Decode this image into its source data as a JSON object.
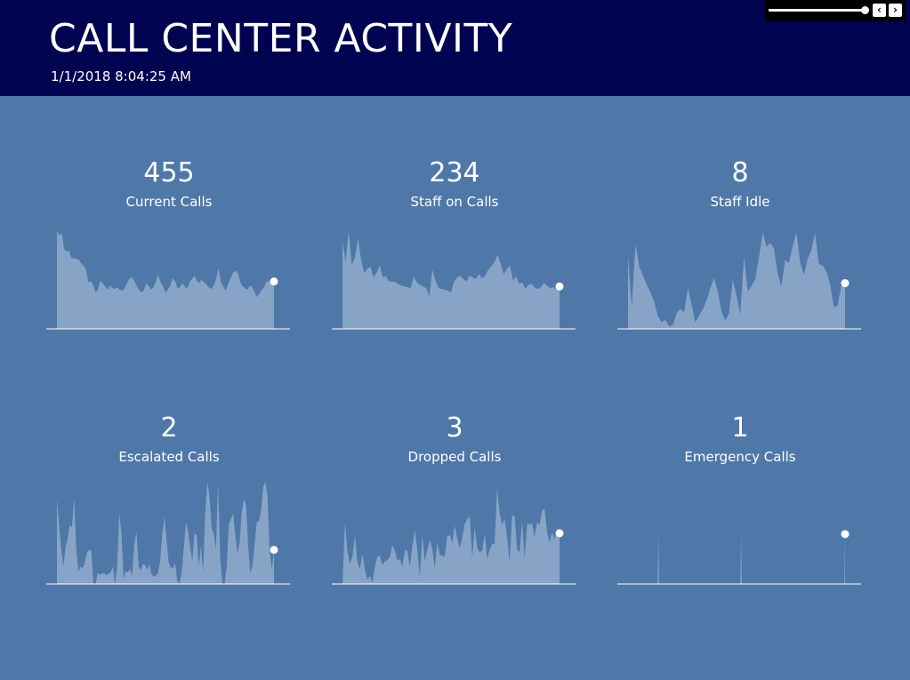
{
  "header": {
    "title": "CALL CENTER ACTIVITY",
    "timestamp": "1/1/2018 8:04:25 AM"
  },
  "player": {
    "slider_position": 1.0,
    "prev_glyph": "‹",
    "next_glyph": "›",
    "prev_icon": "chevron-left-icon",
    "next_icon": "chevron-right-icon"
  },
  "colors": {
    "header_bg": "#000350",
    "page_bg": "#4f78a8",
    "area_fill": "#8aa6c8",
    "baseline": "#ffffff",
    "marker": "#ffffff"
  },
  "chart_data": [
    {
      "type": "area",
      "value": "455",
      "label": "Current Calls",
      "values": [
        118,
        112,
        115,
        96,
        93,
        94,
        85,
        85,
        84,
        83,
        79,
        76,
        72,
        56,
        57,
        53,
        44,
        47,
        58,
        55,
        51,
        47,
        52,
        49,
        48,
        50,
        47,
        46,
        48,
        55,
        60,
        62,
        58,
        52,
        47,
        44,
        46,
        55,
        52,
        47,
        50,
        57,
        65,
        56,
        51,
        44,
        47,
        52,
        61,
        57,
        49,
        50,
        55,
        51,
        48,
        56,
        60,
        64,
        58,
        55,
        59,
        56,
        53,
        50,
        48,
        52,
        60,
        73,
        56,
        51,
        46,
        54,
        61,
        67,
        70,
        67,
        57,
        51,
        49,
        47,
        52,
        50,
        44,
        38,
        43,
        47,
        51,
        57,
        57,
        57,
        57
      ]
    },
    {
      "type": "area",
      "value": "234",
      "label": "Staff on Calls",
      "values": [
        105,
        81,
        117,
        77,
        85,
        109,
        83,
        67,
        72,
        75,
        62,
        67,
        77,
        62,
        63,
        57,
        57,
        56,
        54,
        52,
        51,
        50,
        49,
        63,
        56,
        53,
        51,
        49,
        39,
        71,
        58,
        49,
        48,
        47,
        46,
        44,
        57,
        62,
        64,
        60,
        57,
        64,
        62,
        60,
        66,
        61,
        64,
        71,
        75,
        80,
        89,
        79,
        66,
        72,
        76,
        58,
        63,
        54,
        56,
        48,
        53,
        54,
        50,
        48,
        50,
        55,
        52,
        49,
        50,
        48,
        51
      ]
    },
    {
      "type": "area",
      "value": "8",
      "label": "Staff Idle",
      "values": [
        88,
        26,
        102,
        75,
        64,
        53,
        44,
        32,
        15,
        8,
        11,
        3,
        5,
        19,
        24,
        20,
        49,
        29,
        8,
        16,
        24,
        34,
        49,
        61,
        45,
        20,
        10,
        19,
        59,
        40,
        17,
        87,
        45,
        51,
        60,
        86,
        116,
        99,
        103,
        97,
        66,
        51,
        83,
        79,
        99,
        116,
        80,
        65,
        84,
        95,
        115,
        78,
        76,
        69,
        54,
        26,
        28,
        52,
        55
      ]
    },
    {
      "type": "area",
      "value": "2",
      "label": "Escalated Calls",
      "values": [
        103,
        71,
        41,
        21,
        44,
        55,
        71,
        68,
        103,
        42,
        15,
        21,
        19,
        26,
        38,
        41,
        40,
        0,
        0,
        14,
        11,
        13,
        13,
        11,
        12,
        14,
        21,
        0,
        19,
        84,
        63,
        7,
        15,
        14,
        18,
        10,
        47,
        63,
        21,
        16,
        24,
        23,
        17,
        24,
        12,
        9,
        10,
        13,
        26,
        59,
        81,
        54,
        26,
        20,
        19,
        25,
        4,
        0,
        13,
        42,
        74,
        64,
        44,
        28,
        60,
        60,
        21,
        46,
        14,
        84,
        123,
        104,
        67,
        60,
        42,
        122,
        31,
        0,
        0,
        20,
        72,
        78,
        85,
        58,
        37,
        49,
        86,
        102,
        95,
        45,
        13,
        22,
        48,
        75,
        75,
        88,
        116,
        123,
        104,
        39,
        18,
        41
      ]
    },
    {
      "type": "area",
      "value": "3",
      "label": "Dropped Calls",
      "values": [
        0,
        74,
        39,
        24,
        33,
        58,
        26,
        18,
        36,
        17,
        5,
        10,
        1,
        21,
        33,
        34,
        23,
        27,
        29,
        32,
        47,
        40,
        28,
        30,
        21,
        40,
        40,
        20,
        45,
        65,
        41,
        8,
        58,
        28,
        41,
        53,
        43,
        19,
        50,
        35,
        34,
        33,
        57,
        59,
        49,
        70,
        54,
        43,
        55,
        72,
        78,
        81,
        32,
        67,
        44,
        38,
        40,
        60,
        30,
        41,
        48,
        48,
        116,
        85,
        71,
        78,
        56,
        26,
        82,
        82,
        41,
        38,
        76,
        30,
        72,
        72,
        73,
        56,
        74,
        71,
        88,
        91,
        62,
        50,
        62,
        54,
        63,
        61
      ]
    },
    {
      "type": "area",
      "value": "1",
      "label": "Emergency Calls",
      "values": [
        0,
        0,
        0,
        0,
        0,
        0,
        0,
        0,
        0,
        0,
        0,
        0,
        0,
        0,
        0,
        0,
        0,
        0,
        0,
        0,
        0,
        0,
        0,
        0,
        0,
        0,
        0,
        0,
        0,
        0,
        0,
        0,
        0,
        0,
        0,
        0,
        0,
        0,
        0,
        0,
        60,
        0,
        0,
        0,
        0,
        0,
        0,
        0,
        0,
        0,
        0,
        0,
        0,
        0,
        0,
        0,
        0,
        0,
        0,
        0,
        0,
        0,
        0,
        0,
        0,
        0,
        0,
        0,
        0,
        0,
        0,
        0,
        0,
        0,
        0,
        0,
        0,
        0,
        0,
        0,
        0,
        0,
        0,
        0,
        0,
        0,
        0,
        0,
        0,
        0,
        0,
        0,
        0,
        0,
        0,
        0,
        0,
        0,
        0,
        0,
        0,
        0,
        0,
        0,
        0,
        0,
        0,
        0,
        0,
        0,
        0,
        0,
        0,
        0,
        0,
        0,
        0,
        0,
        0,
        0,
        0,
        0,
        0,
        0,
        0,
        0,
        0,
        0,
        0,
        0,
        0,
        0,
        0,
        0,
        0,
        0,
        0,
        0,
        0,
        0,
        0,
        0,
        0,
        0,
        0,
        0,
        0,
        0,
        0,
        60,
        0,
        0,
        0,
        0,
        0,
        0,
        0,
        0,
        0,
        0,
        0,
        0,
        0,
        0,
        0,
        0,
        0,
        0,
        0,
        0,
        0,
        0,
        0,
        0,
        0,
        0,
        0,
        0,
        0,
        0,
        0,
        0,
        0,
        0,
        0,
        0,
        0,
        0,
        0,
        0,
        0,
        0,
        0,
        0,
        0,
        0,
        0,
        0,
        0,
        0,
        0,
        0,
        0,
        0,
        0,
        0,
        0,
        0,
        0,
        0,
        0,
        0,
        0,
        0,
        0,
        0,
        0,
        0,
        0,
        0,
        0,
        0,
        0,
        0,
        0,
        0,
        0,
        0,
        0,
        0,
        0,
        0,
        0,
        0,
        0,
        0,
        0,
        0,
        0,
        0,
        0,
        0,
        0,
        0,
        0,
        0,
        0,
        0,
        0,
        0,
        0,
        0,
        0,
        0,
        0,
        0,
        0,
        0,
        0,
        0,
        0,
        0,
        0,
        0,
        0,
        0,
        0,
        0,
        0,
        0,
        0,
        0,
        0,
        0,
        0,
        0,
        0,
        0,
        0,
        0,
        0,
        0,
        0,
        0,
        0,
        0,
        60
      ]
    }
  ]
}
